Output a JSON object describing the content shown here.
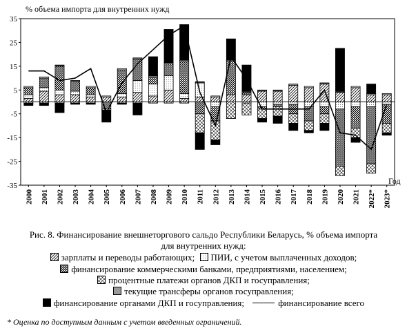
{
  "chart_data": {
    "type": "bar",
    "stacked": true,
    "ylabel": "% объема импорта для внутренних нужд",
    "xlabel": "Год",
    "ylim": [
      -35,
      35
    ],
    "yticks": [
      -35,
      -25,
      -15,
      -5,
      5,
      15,
      25,
      35
    ],
    "categories": [
      "2000",
      "2001",
      "2002",
      "2003",
      "2004",
      "2005",
      "2006",
      "2007",
      "2008",
      "2009",
      "2010",
      "2011",
      "2012",
      "2013",
      "2014",
      "2015",
      "2016",
      "2017",
      "2018",
      "2019",
      "2020",
      "2021",
      "2022*",
      "2023*"
    ],
    "series": [
      {
        "name": "зарплаты и переводы работающих;",
        "pattern": "diag-hatch",
        "values": [
          1.5,
          4.5,
          3,
          3,
          2,
          2,
          2,
          4,
          2.5,
          5,
          1.5,
          2,
          2,
          3,
          3,
          4.5,
          4.5,
          7,
          6,
          7.5,
          4,
          6,
          3,
          3
        ]
      },
      {
        "name": "ПИИ, с учетом выплаченных доходов;",
        "pattern": "dotted-box",
        "values": [
          1.5,
          1.5,
          2,
          1.5,
          1,
          0,
          1.5,
          5,
          5,
          6,
          2,
          6,
          -2,
          0,
          -0.5,
          -2,
          -1,
          -1,
          -2,
          -2,
          -3,
          -2,
          -2,
          -1
        ]
      },
      {
        "name": "финансирование коммерческими банками, предприятиями, населением;",
        "pattern": "dense-dots",
        "values": [
          3,
          4,
          10,
          4,
          3,
          -3,
          10,
          9,
          3,
          5,
          13.5,
          -5,
          -6,
          14,
          1,
          -1,
          -1,
          -4,
          -6,
          -3,
          -24,
          -9,
          -24,
          -8
        ]
      },
      {
        "name": "процентные платежи органов ДКП и госуправления;",
        "pattern": "cross-hatch",
        "values": [
          -0.5,
          -0.5,
          -0.5,
          -0.5,
          -0.5,
          -0.5,
          -0.5,
          -0.5,
          -0.5,
          -0.5,
          -0.5,
          -8,
          -8,
          -7,
          -5,
          -4,
          -4,
          -4,
          -4,
          -4,
          -4,
          -4,
          -4,
          -4
        ]
      },
      {
        "name": "текущие трансферы органов госуправления;",
        "pattern": "horiz-lines",
        "values": [
          0.5,
          0.5,
          0.5,
          0.5,
          0.5,
          0.5,
          0.5,
          0.5,
          0.5,
          0.5,
          0.5,
          0.5,
          0.5,
          0.5,
          0.5,
          0.5,
          0.5,
          0.5,
          0.5,
          0.5,
          0.5,
          0.5,
          0.5,
          0.5
        ]
      },
      {
        "name": "финансирование органами ДКП и госуправления;",
        "pattern": "solid",
        "values": [
          -1,
          -1,
          -4,
          -0.5,
          -0.5,
          -5,
          -0.5,
          -5,
          8,
          14,
          15,
          -7,
          -2,
          9,
          11,
          -1.5,
          -3,
          -3,
          -1,
          -3,
          18,
          -2,
          4,
          -1
        ]
      }
    ],
    "total_line": {
      "name": "финансирование всего",
      "values": [
        13,
        13,
        9,
        10,
        14,
        -4.5,
        8,
        16,
        22,
        28,
        32,
        4,
        -10,
        19,
        9.5,
        -3,
        -3,
        -3,
        -3,
        5,
        -13,
        -14,
        -20,
        -1
      ]
    }
  },
  "caption": {
    "line1": "Рис. 8. Финансирование внешнеторгового сальдо Республики Беларусь, % объема импорта",
    "line2": "для внутренних нужд:"
  },
  "footnote": "* Оценка по доступным данным с учетом введенных ограничений."
}
